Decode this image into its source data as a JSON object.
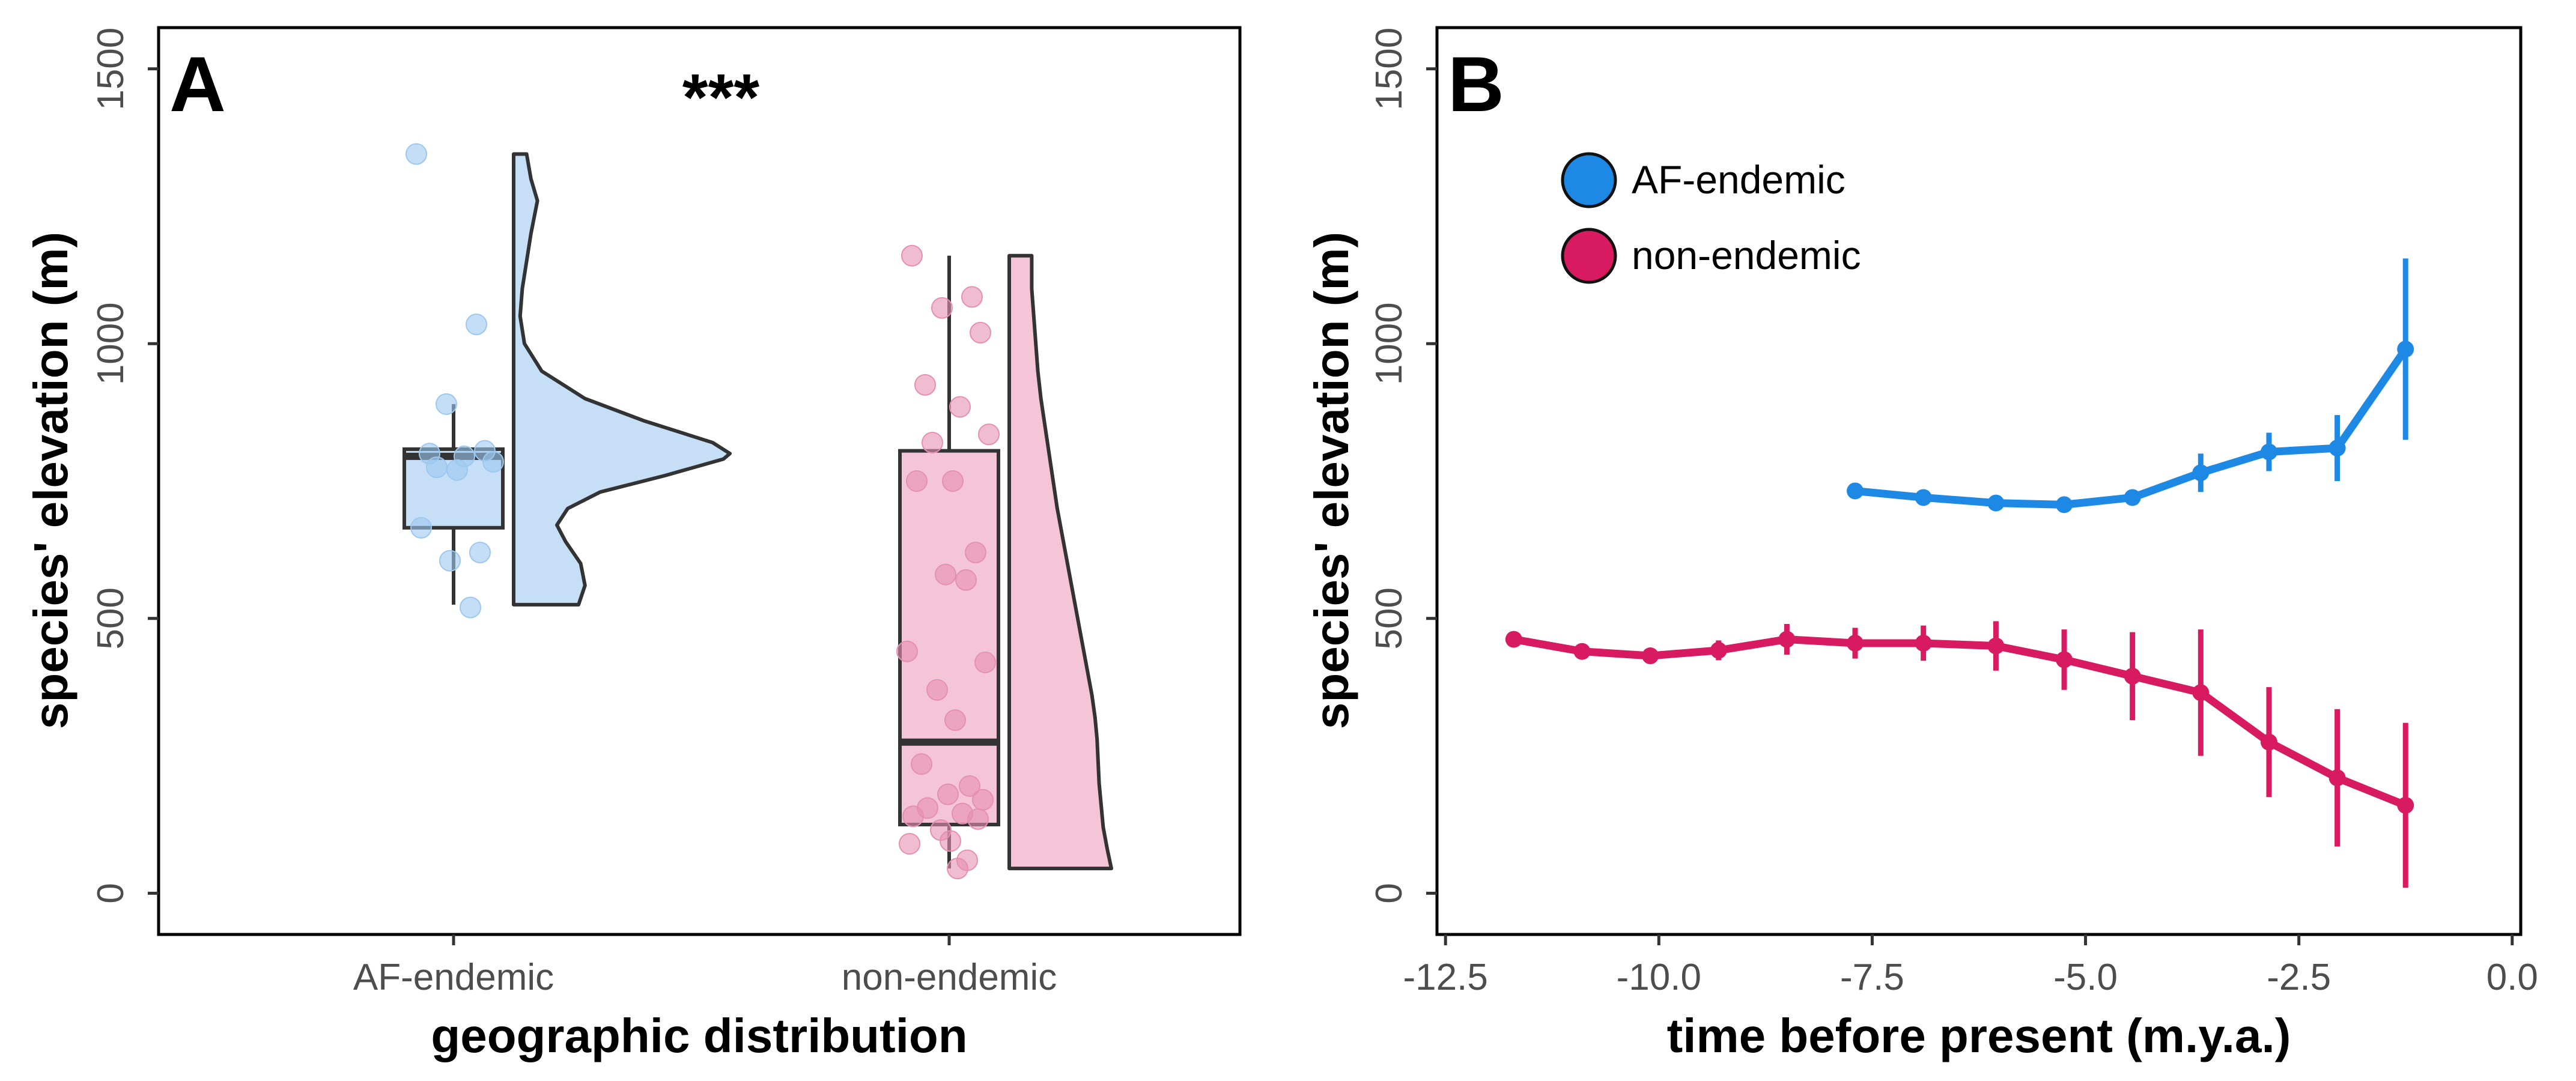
{
  "chart_data": [
    {
      "panel": "A",
      "type": "raincloud",
      "annotation": "***",
      "xlabel": "geographic distribution",
      "ylabel": "species' elevation (m)",
      "ylim": [
        -75,
        1575
      ],
      "yticks": [
        "0",
        "500",
        "1000",
        "1500"
      ],
      "ytick_values": [
        0,
        500,
        1000,
        1500
      ],
      "categories": [
        "AF-endemic",
        "non-endemic"
      ],
      "colors": {
        "AF-endemic": "#c6dff7",
        "AF-endemic-point": "#9cc8f0",
        "non-endemic": "#f4c5d6",
        "non-endemic-point": "#e690b0",
        "outline": "#333333"
      },
      "groups": [
        {
          "name": "AF-endemic",
          "box": {
            "min": 525,
            "q1": 665,
            "median": 795,
            "q3": 808,
            "max": 890
          },
          "points": [
            1345,
            1035,
            890,
            805,
            800,
            795,
            785,
            775,
            770,
            665,
            620,
            605,
            520
          ],
          "density": {
            "y": [
              525,
              560,
              600,
              640,
              670,
              700,
              730,
              760,
              790,
              800,
              820,
              860,
              900,
              950,
              1000,
              1050,
              1100,
              1150,
              1200,
              1260,
              1300,
              1345
            ],
            "d": [
              0.3,
              0.33,
              0.31,
              0.24,
              0.2,
              0.25,
              0.4,
              0.7,
              0.97,
              1.0,
              0.92,
              0.6,
              0.33,
              0.13,
              0.05,
              0.03,
              0.04,
              0.06,
              0.08,
              0.11,
              0.08,
              0.06
            ]
          }
        },
        {
          "name": "non-endemic",
          "box": {
            "min": 45,
            "q1": 125,
            "median": 275,
            "q3": 805,
            "max": 1160
          },
          "points": [
            1160,
            1085,
            1065,
            1020,
            925,
            885,
            835,
            820,
            750,
            750,
            620,
            580,
            570,
            440,
            420,
            370,
            315,
            235,
            195,
            180,
            170,
            155,
            145,
            140,
            135,
            115,
            95,
            90,
            60,
            45
          ],
          "density": {
            "y": [
              45,
              80,
              120,
              160,
              200,
              240,
              280,
              320,
              360,
              400,
              450,
              500,
              550,
              600,
              650,
              700,
              750,
              800,
              850,
              900,
              950,
              1000,
              1050,
              1100,
              1160
            ],
            "d": [
              1.0,
              0.96,
              0.92,
              0.9,
              0.88,
              0.87,
              0.86,
              0.84,
              0.81,
              0.77,
              0.72,
              0.67,
              0.62,
              0.57,
              0.52,
              0.47,
              0.43,
              0.39,
              0.35,
              0.31,
              0.28,
              0.26,
              0.24,
              0.22,
              0.22
            ]
          }
        }
      ]
    },
    {
      "panel": "B",
      "type": "line",
      "xlabel": "time before present (m.y.a.)",
      "ylabel": "species' elevation (m)",
      "xlim": [
        -12.6,
        0.1
      ],
      "ylim": [
        -75,
        1575
      ],
      "xticks": [
        "-12.5",
        "-10.0",
        "-7.5",
        "-5.0",
        "-2.5",
        "0.0"
      ],
      "xtick_values": [
        -12.5,
        -10.0,
        -7.5,
        -5.0,
        -2.5,
        0.0
      ],
      "yticks": [
        "0",
        "500",
        "1000",
        "1500"
      ],
      "ytick_values": [
        0,
        500,
        1000,
        1500
      ],
      "legend_position": "top-left",
      "series": [
        {
          "name": "AF-endemic",
          "color": "#1e88e5",
          "x": [
            -7.7,
            -6.9,
            -6.05,
            -5.25,
            -4.45,
            -3.65,
            -2.85,
            -2.05,
            -1.25
          ],
          "y": [
            732,
            720,
            710,
            707,
            720,
            765,
            803,
            810,
            990
          ],
          "err": [
            8,
            8,
            8,
            10,
            12,
            35,
            35,
            60,
            165
          ]
        },
        {
          "name": "non-endemic",
          "color": "#d81b60",
          "x": [
            -11.7,
            -10.9,
            -10.1,
            -9.3,
            -8.5,
            -7.7,
            -6.9,
            -6.05,
            -5.25,
            -4.45,
            -3.65,
            -2.85,
            -2.05,
            -1.25
          ],
          "y": [
            462,
            440,
            432,
            442,
            462,
            455,
            455,
            450,
            425,
            395,
            365,
            275,
            210,
            160
          ],
          "err": [
            8,
            10,
            12,
            18,
            28,
            28,
            32,
            45,
            55,
            80,
            115,
            100,
            125,
            150
          ]
        }
      ]
    }
  ]
}
